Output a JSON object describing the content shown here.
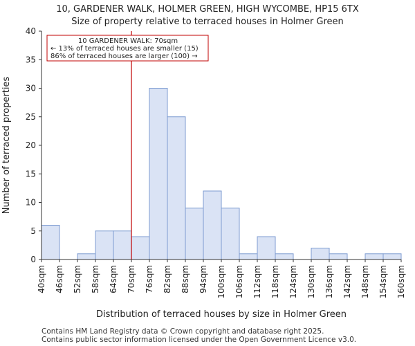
{
  "title_line1": "10, GARDENER WALK, HOLMER GREEN, HIGH WYCOMBE, HP15 6TX",
  "title_line2": "Size of property relative to terraced houses in Holmer Green",
  "footer_line1": "Contains HM Land Registry data © Crown copyright and database right 2025.",
  "footer_line2": "Contains public sector information licensed under the Open Government Licence v3.0.",
  "colors": {
    "bar_fill": "#dae3f5",
    "bar_stroke": "#7d9bd1",
    "marker": "#c00000",
    "axis": "#333333"
  },
  "chart_data": {
    "type": "bar",
    "title": "Size of property relative to terraced houses in Holmer Green",
    "xlabel": "Distribution of terraced houses by size in Holmer Green",
    "ylabel": "Number of terraced properties",
    "ylim": [
      0,
      40
    ],
    "yticks": [
      0,
      5,
      10,
      15,
      20,
      25,
      30,
      35,
      40
    ],
    "xticks": [
      "40sqm",
      "46sqm",
      "52sqm",
      "58sqm",
      "64sqm",
      "70sqm",
      "76sqm",
      "82sqm",
      "88sqm",
      "94sqm",
      "100sqm",
      "106sqm",
      "112sqm",
      "118sqm",
      "124sqm",
      "130sqm",
      "136sqm",
      "142sqm",
      "148sqm",
      "154sqm",
      "160sqm"
    ],
    "bin_edges": [
      40,
      46,
      52,
      58,
      64,
      70,
      76,
      82,
      88,
      94,
      100,
      106,
      112,
      118,
      124,
      130,
      136,
      142,
      148,
      154,
      160
    ],
    "values": [
      6,
      0,
      1,
      5,
      5,
      4,
      30,
      25,
      9,
      12,
      9,
      1,
      4,
      1,
      0,
      2,
      1,
      0,
      1,
      1
    ],
    "marker_value": 70,
    "annotation": {
      "line1": "10 GARDENER WALK: 70sqm",
      "line2": "← 13% of terraced houses are smaller (15)",
      "line3": "86% of terraced houses are larger (100) →"
    }
  }
}
